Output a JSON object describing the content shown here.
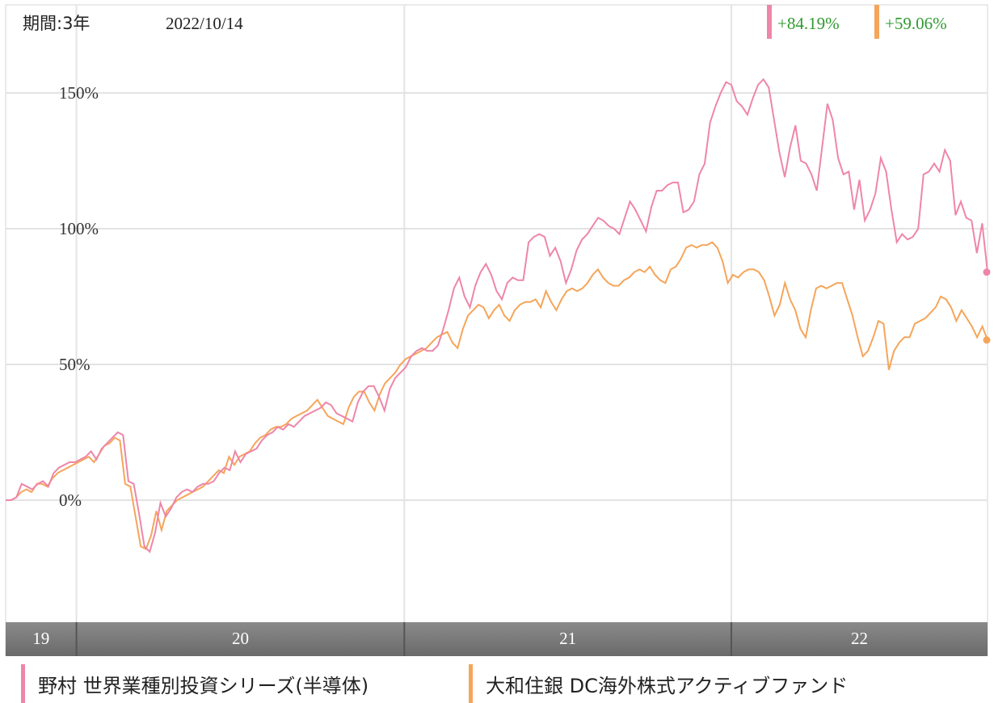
{
  "header": {
    "period_label": "期間:3年",
    "date": "2022/10/14"
  },
  "colors": {
    "pink": "#ee86a8",
    "orange": "#f5a55a",
    "positive_text": "#2f9a2f",
    "grid": "#e3e3e3",
    "year_band": "#7a7a7a"
  },
  "chart_data": {
    "type": "line",
    "title": "",
    "xlabel": "",
    "ylabel": "",
    "y_ticks": [
      "150%",
      "100%",
      "50%",
      "0%"
    ],
    "y_tick_values": [
      150,
      100,
      50,
      0
    ],
    "ylim": [
      -45,
      165
    ],
    "x_tick_labels": [
      "19",
      "20",
      "21",
      "22"
    ],
    "x_range": [
      "2019-10-14",
      "2022-10-14"
    ],
    "x_year_starts": [
      "2020-01-01",
      "2021-01-01",
      "2022-01-01"
    ],
    "grid": true,
    "series": [
      {
        "name": "野村 世界業種別投資シリーズ(半導体)",
        "return_label": "+84.19%",
        "color": "#ee86a8",
        "values": [
          0,
          0,
          1,
          6,
          5,
          4,
          6,
          7,
          5,
          10,
          12,
          13,
          14,
          14,
          15,
          16,
          18,
          15,
          19,
          21,
          23,
          25,
          24,
          7,
          6,
          -5,
          -17,
          -19,
          -12,
          -1,
          -6,
          -3,
          1,
          3,
          4,
          3,
          5,
          6,
          6,
          7,
          10,
          12,
          11,
          18,
          14,
          17,
          18,
          19,
          22,
          24,
          25,
          27,
          26,
          28,
          27,
          29,
          31,
          32,
          33,
          34,
          36,
          35,
          32,
          31,
          30,
          29,
          36,
          40,
          42,
          42,
          38,
          33,
          41,
          45,
          47,
          49,
          53,
          55,
          56,
          55,
          55,
          57,
          63,
          70,
          78,
          82,
          75,
          71,
          79,
          84,
          87,
          83,
          77,
          74,
          80,
          82,
          81,
          81,
          95,
          97,
          98,
          97,
          90,
          93,
          88,
          80,
          85,
          92,
          96,
          98,
          101,
          104,
          103,
          101,
          100,
          98,
          104,
          110,
          107,
          103,
          99,
          108,
          114,
          114,
          116,
          117,
          117,
          106,
          107,
          110,
          120,
          124,
          139,
          145,
          150,
          154,
          153,
          147,
          145,
          142,
          148,
          153,
          155,
          152,
          140,
          128,
          119,
          130,
          138,
          125,
          124,
          120,
          114,
          130,
          146,
          140,
          126,
          120,
          121,
          107,
          118,
          103,
          107,
          113,
          126,
          121,
          107,
          95,
          98,
          96,
          97,
          100,
          120,
          121,
          124,
          121,
          129,
          125,
          105,
          110,
          104,
          103,
          91,
          102,
          84
        ]
      },
      {
        "name": "大和住銀 DC海外株式アクティブファンド",
        "return_label": "+59.06%",
        "color": "#f5a55a",
        "values": [
          0,
          0,
          1,
          3,
          4,
          3,
          6,
          6,
          5,
          8,
          10,
          11,
          12,
          13,
          14,
          15,
          16,
          14,
          17,
          20,
          21,
          23,
          22,
          6,
          5,
          -6,
          -17,
          -18,
          -13,
          -4,
          -11,
          -4,
          -2,
          0,
          1,
          2,
          3,
          4,
          5,
          7,
          9,
          11,
          10,
          16,
          13,
          16,
          17,
          18,
          21,
          23,
          24,
          26,
          27,
          27,
          28,
          30,
          31,
          32,
          33,
          35,
          37,
          34,
          31,
          30,
          29,
          28,
          34,
          38,
          40,
          40,
          36,
          33,
          39,
          43,
          45,
          47,
          50,
          52,
          53,
          54,
          55,
          56,
          58,
          60,
          61,
          62,
          58,
          56,
          63,
          68,
          70,
          72,
          71,
          67,
          70,
          72,
          68,
          66,
          70,
          72,
          73,
          73,
          74,
          71,
          77,
          73,
          70,
          74,
          77,
          78,
          77,
          78,
          80,
          83,
          85,
          82,
          80,
          79,
          79,
          81,
          82,
          84,
          85,
          84,
          86,
          83,
          81,
          80,
          85,
          86,
          89,
          93,
          94,
          93,
          94,
          94,
          95,
          93,
          88,
          80,
          83,
          82,
          84,
          85,
          85,
          84,
          81,
          75,
          68,
          72,
          80,
          74,
          70,
          63,
          60,
          70,
          78,
          79,
          78,
          79,
          80,
          80,
          74,
          68,
          60,
          53,
          55,
          60,
          66,
          65,
          48,
          55,
          58,
          60,
          60,
          65,
          66,
          67,
          69,
          71,
          75,
          74,
          71,
          66,
          70,
          67,
          64,
          60,
          64,
          59
        ]
      }
    ]
  }
}
